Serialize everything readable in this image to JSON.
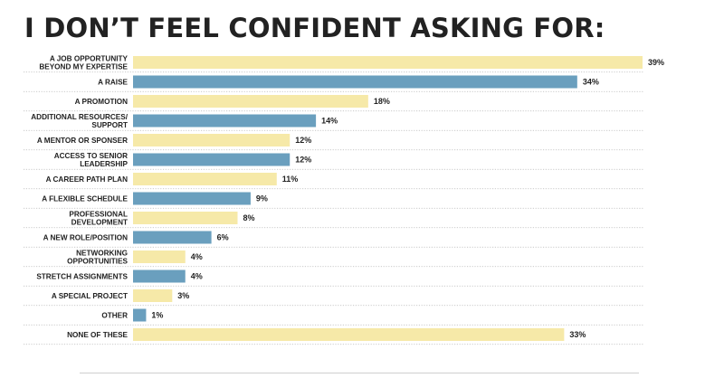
{
  "colors": {
    "cream": "#f6e9a8",
    "blue": "#6a9fbe"
  },
  "chart_data": {
    "type": "bar",
    "orientation": "horizontal",
    "title": "I DON’T FEEL CONFIDENT ASKING FOR:",
    "categories": [
      "A JOB OPPORTUNITY\nBEYOND MY EXPERTISE",
      "A RAISE",
      "A PROMOTION",
      "ADDITIONAL RESOURCES/\nSUPPORT",
      "A MENTOR OR SPONSER",
      "ACCESS TO SENIOR\nLEADERSHIP",
      "A CAREER PATH PLAN",
      "A FLEXIBLE SCHEDULE",
      "PROFESSIONAL\nDEVELOPMENT",
      "A NEW ROLE/POSITION",
      "NETWORKING\nOPPORTUNITIES",
      "STRETCH ASSIGNMENTS",
      "A SPECIAL PROJECT",
      "OTHER",
      "NONE OF THESE"
    ],
    "values": [
      39,
      34,
      18,
      14,
      12,
      12,
      11,
      9,
      8,
      6,
      4,
      4,
      3,
      1,
      33
    ],
    "value_labels": [
      "39%",
      "34%",
      "18%",
      "14%",
      "12%",
      "12%",
      "11%",
      "9%",
      "8%",
      "6%",
      "4%",
      "4%",
      "3%",
      "1%",
      "33%"
    ],
    "bar_colors": [
      "cream",
      "blue",
      "cream",
      "blue",
      "cream",
      "blue",
      "cream",
      "blue",
      "cream",
      "blue",
      "cream",
      "blue",
      "cream",
      "blue",
      "cream"
    ],
    "xlim": [
      0,
      39
    ],
    "grid": false,
    "legend": "none"
  }
}
